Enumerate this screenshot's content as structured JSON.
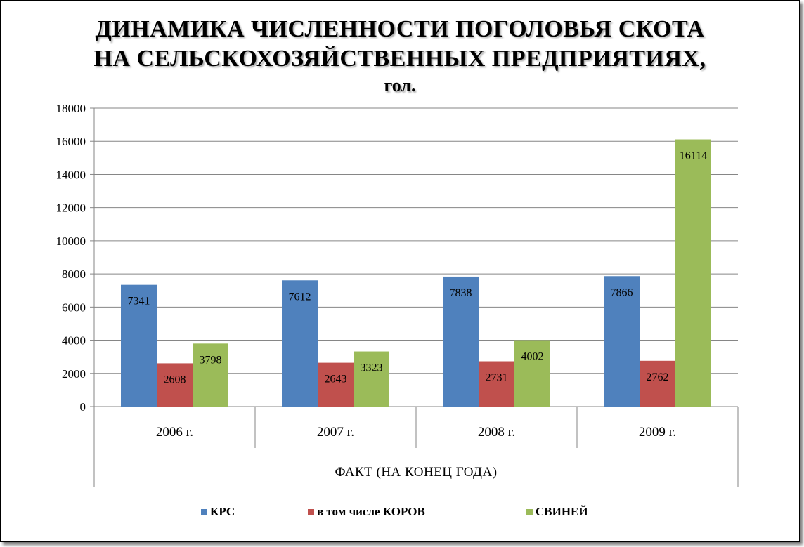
{
  "chart_data": {
    "type": "bar",
    "title": "ДИНАМИКА  ЧИСЛЕННОСТИ  ПОГОЛОВЬЯ  СКОТА  НА  СЕЛЬСКОХОЗЯЙСТВЕННЫХ  ПРЕДПРИЯТИЯХ,  гол.",
    "title_lines": [
      "ДИНАМИКА  ЧИСЛЕННОСТИ  ПОГОЛОВЬЯ  СКОТА",
      "НА  СЕЛЬСКОХОЗЯЙСТВЕННЫХ  ПРЕДПРИЯТИЯХ,",
      "гол."
    ],
    "categories": [
      "2006 г.",
      "2007 г.",
      "2008 г.",
      "2009 г."
    ],
    "category_group_label": "ФАКТ  (НА  КОНЕЦ  ГОДА)",
    "series": [
      {
        "name": "КРС",
        "color": "#4F81BD",
        "values": [
          7341,
          7612,
          7838,
          7866
        ]
      },
      {
        "name": "в том числе  КОРОВ",
        "color": "#C0504D",
        "values": [
          2608,
          2643,
          2731,
          2762
        ]
      },
      {
        "name": "СВИНЕЙ",
        "color": "#9BBB59",
        "values": [
          3798,
          3323,
          4002,
          16114
        ]
      }
    ],
    "ylim": [
      0,
      18000
    ],
    "yticks": [
      "0",
      "2000",
      "4000",
      "6000",
      "8000",
      "10000",
      "12000",
      "14000",
      "16000",
      "18000"
    ],
    "xlabel": "",
    "ylabel": "",
    "grid": true,
    "legend_position": "bottom",
    "data_labels": true
  }
}
